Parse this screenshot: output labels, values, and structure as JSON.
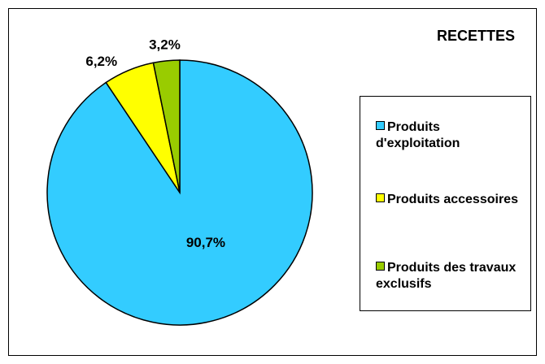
{
  "chart_data": {
    "type": "pie",
    "title": "RECETTES",
    "series": [
      {
        "name": "Produits d'exploitation",
        "color": "#33ccff",
        "values": [
          90.7
        ],
        "value_labels": [
          "90,7%"
        ]
      },
      {
        "name": "Produits accessoires",
        "color": "#ffff00",
        "values": [
          6.2
        ],
        "value_labels": [
          "6,2%"
        ]
      },
      {
        "name": "Produits des travaux exclusifs",
        "color": "#99cc00",
        "values": [
          3.2
        ],
        "value_labels": [
          "3,2%"
        ]
      }
    ],
    "legend": "right"
  }
}
